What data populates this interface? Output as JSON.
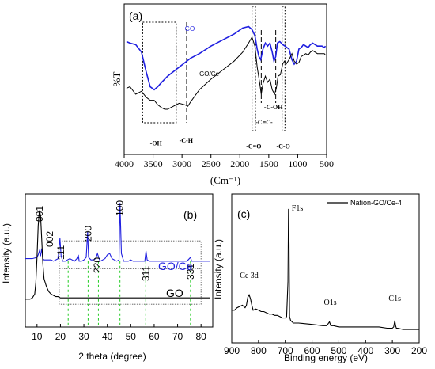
{
  "chart_data": [
    {
      "type": "line",
      "panel_label": "(a)",
      "ylabel": "%T",
      "xlabel": "(Cm⁻¹)",
      "xlim": [
        4000,
        500
      ],
      "xticks": [
        4000,
        3500,
        3000,
        2500,
        2000,
        1500,
        1000,
        500
      ],
      "series": [
        {
          "name": "GO",
          "color": "#1f1fe0",
          "x": [
            3960,
            3900,
            3800,
            3700,
            3620,
            3550,
            3480,
            3420,
            3350,
            3250,
            3150,
            3050,
            2950,
            2850,
            2700,
            2500,
            2300,
            2100,
            1950,
            1850,
            1790,
            1740,
            1700,
            1670,
            1640,
            1600,
            1560,
            1520,
            1480,
            1440,
            1410,
            1380,
            1350,
            1310,
            1260,
            1220,
            1150,
            1100,
            1060,
            1020,
            980,
            940,
            900,
            860,
            820,
            780,
            740,
            700,
            660,
            620,
            580,
            540,
            520
          ],
          "y": [
            75,
            74,
            73,
            68,
            55,
            45,
            43,
            45,
            48,
            52,
            55,
            58,
            61,
            64,
            67,
            72,
            76,
            80,
            84,
            85,
            83,
            79,
            70,
            65,
            63,
            70,
            74,
            72,
            74,
            68,
            62,
            65,
            74,
            75,
            73,
            72,
            70,
            63,
            60,
            62,
            70,
            71,
            73,
            72,
            71,
            73,
            74,
            73,
            72,
            72,
            72,
            71,
            72
          ]
        },
        {
          "name": "GO/Ce",
          "color": "#000000",
          "x": [
            3960,
            3900,
            3800,
            3700,
            3620,
            3550,
            3480,
            3420,
            3350,
            3300,
            3250,
            3150,
            3050,
            2950,
            2900,
            2850,
            2700,
            2500,
            2300,
            2100,
            1950,
            1850,
            1790,
            1740,
            1700,
            1660,
            1630,
            1600,
            1560,
            1520,
            1480,
            1440,
            1400,
            1370,
            1340,
            1300,
            1260,
            1230,
            1200,
            1150,
            1100,
            1060,
            1020,
            980,
            940,
            900,
            860,
            820,
            780,
            740,
            700,
            660,
            620,
            580,
            540,
            520
          ],
          "y": [
            44,
            45,
            40,
            42,
            38,
            36,
            36,
            33,
            31,
            30,
            30,
            32,
            34,
            33,
            32,
            35,
            43,
            50,
            56,
            62,
            68,
            74,
            78,
            72,
            58,
            48,
            40,
            47,
            52,
            48,
            50,
            43,
            40,
            44,
            52,
            53,
            60,
            62,
            60,
            63,
            67,
            62,
            60,
            61,
            65,
            66,
            67,
            66,
            68,
            69,
            68,
            67,
            67,
            67,
            67,
            66
          ]
        }
      ],
      "annotations": [
        {
          "text": "GO",
          "x": 2950,
          "y": 82
        },
        {
          "text": "GO/Ce",
          "x": 2700,
          "y": 52
        },
        {
          "text": "-OH",
          "x": 3450,
          "y": 6,
          "box": [
            3680,
            3100
          ]
        },
        {
          "text": "-C-H",
          "x": 2930,
          "y": 8,
          "line": 2920
        },
        {
          "text": "-C=O",
          "x": 1760,
          "y": 4,
          "box": [
            1790,
            1730
          ]
        },
        {
          "text": "-C=C-",
          "x": 1580,
          "y": 20,
          "line": 1630
        },
        {
          "text": "-C-OH",
          "x": 1420,
          "y": 30,
          "line": 1380
        },
        {
          "text": "-C-O",
          "x": 1250,
          "y": 4,
          "box": [
            1270,
            1220
          ]
        }
      ]
    },
    {
      "type": "line",
      "panel_label": "(b)",
      "ylabel": "Intensity (a.u.)",
      "xlabel": "2 theta (degree)",
      "xlim": [
        5,
        85
      ],
      "xticks": [
        10,
        20,
        30,
        40,
        50,
        60,
        70,
        80
      ],
      "series": [
        {
          "name": "GO/Ce",
          "color": "#1f1fe0",
          "x": [
            5,
            8,
            10,
            10.5,
            11,
            11.5,
            12,
            12.5,
            13,
            14,
            15,
            16,
            17,
            18,
            19,
            19.8,
            20.3,
            21,
            22,
            23,
            24,
            25,
            26,
            27,
            27.6,
            28,
            29,
            30,
            31,
            31.6,
            32,
            33,
            34,
            35,
            35.8,
            36.5,
            37,
            38,
            39,
            40,
            41,
            42,
            43,
            44,
            45,
            45.4,
            46,
            47,
            48,
            49,
            50,
            51,
            52,
            53,
            54,
            55,
            56,
            56.5,
            57,
            58,
            60,
            62,
            64,
            66,
            68,
            70,
            72,
            74,
            75.5,
            76,
            78,
            80,
            82,
            84
          ],
          "y": [
            54,
            54,
            55,
            57,
            60,
            56,
            62,
            54,
            53,
            53,
            53,
            53,
            52,
            53,
            54,
            70,
            56,
            52,
            52,
            53,
            54,
            53,
            52,
            54,
            57,
            52,
            52,
            53,
            55,
            75,
            55,
            53,
            53,
            54,
            58,
            54,
            52,
            53,
            54,
            57,
            58,
            54,
            53,
            52,
            53,
            98,
            58,
            52,
            52,
            52,
            53,
            52,
            52,
            52,
            52,
            52,
            52,
            60,
            53,
            52,
            52,
            52,
            52,
            52,
            52,
            52,
            52,
            52,
            55,
            52,
            52,
            52,
            52,
            52
          ]
        },
        {
          "name": "GO",
          "color": "#000000",
          "x": [
            5,
            7,
            8,
            9,
            9.5,
            10,
            10.5,
            11,
            11.5,
            12,
            12.5,
            13,
            14,
            15,
            16,
            17,
            18,
            19,
            20,
            22,
            25,
            30,
            40,
            50,
            60,
            70,
            80,
            84
          ],
          "y": [
            22,
            22,
            23,
            26,
            35,
            55,
            80,
            92,
            88,
            70,
            50,
            38,
            32,
            28,
            26,
            25,
            24,
            24,
            23,
            23,
            23,
            23,
            23,
            23,
            23,
            23,
            23,
            23
          ]
        }
      ],
      "peaks": [
        {
          "label": "001",
          "x": 11.0
        },
        {
          "label": "002",
          "x": 15.5
        },
        {
          "label": "111",
          "x": 20.2
        },
        {
          "label": "200",
          "x": 31.8
        },
        {
          "label": "220",
          "x": 35.8
        },
        {
          "label": "100",
          "x": 45.4
        },
        {
          "label": "311",
          "x": 56.4
        },
        {
          "label": "331",
          "x": 75.5
        }
      ],
      "reference_lines": [
        23.3,
        31.8,
        36.2,
        45.4,
        56.4,
        75.5
      ],
      "curve_labels": [
        "GO/Ce",
        "GO"
      ]
    },
    {
      "type": "line",
      "panel_label": "(c)",
      "ylabel": "Intensity (a.u.)",
      "xlabel": "Binding energy (eV)",
      "xlim": [
        900,
        200
      ],
      "xticks": [
        900,
        800,
        700,
        600,
        500,
        400,
        300,
        200
      ],
      "series": [
        {
          "name": "Nafion-GO/Ce-4",
          "color": "#000000",
          "x": [
            900,
            890,
            880,
            870,
            860,
            850,
            845,
            840,
            835,
            830,
            825,
            820,
            810,
            800,
            790,
            780,
            770,
            760,
            750,
            740,
            730,
            720,
            710,
            700,
            695,
            690,
            688,
            686,
            684,
            680,
            670,
            650,
            600,
            560,
            545,
            535,
            530,
            520,
            500,
            450,
            400,
            350,
            320,
            300,
            295,
            291,
            288,
            285,
            280,
            260,
            240,
            220,
            200
          ],
          "y": [
            18,
            18,
            20,
            21,
            22,
            20,
            22,
            28,
            30,
            27,
            22,
            18,
            19,
            18,
            17,
            17,
            16,
            15,
            15,
            14,
            14,
            13,
            12,
            12,
            13,
            40,
            97,
            70,
            13,
            10,
            8,
            8,
            7,
            6,
            6,
            9,
            6,
            6,
            5,
            5,
            5,
            5,
            4,
            4,
            5,
            10,
            6,
            4,
            4,
            3,
            3,
            3,
            3
          ]
        }
      ],
      "peak_labels": [
        {
          "text": "F1s",
          "x": 688
        },
        {
          "text": "Ce 3d",
          "x": 835
        },
        {
          "text": "O1s",
          "x": 532
        },
        {
          "text": "C1s",
          "x": 291
        }
      ],
      "legend": "top-right"
    }
  ]
}
